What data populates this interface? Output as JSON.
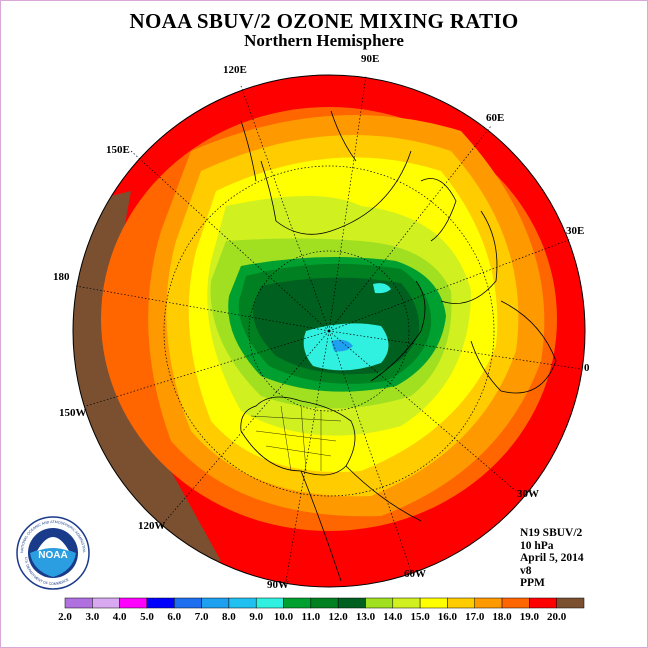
{
  "title": "NOAA SBUV/2 OZONE MIXING RATIO",
  "subtitle": "Northern Hemisphere",
  "longitude_labels": [
    "90E",
    "60E",
    "30E",
    "0",
    "30W",
    "60W",
    "90W",
    "120W",
    "150W",
    "180",
    "150E",
    "120E"
  ],
  "info": {
    "instrument": "N19 SBUV/2",
    "level": "10 hPa",
    "date": "April 5, 2014",
    "version": "v8",
    "units": "PPM"
  },
  "colorbar": {
    "ticks": [
      "2.0",
      "3.0",
      "4.0",
      "5.0",
      "6.0",
      "7.0",
      "8.0",
      "9.0",
      "10.0",
      "11.0",
      "12.0",
      "13.0",
      "14.0",
      "15.0",
      "16.0",
      "17.0",
      "18.0",
      "19.0",
      "20.0"
    ],
    "colors": [
      "#b070e0",
      "#d8a8f0",
      "#ff00ff",
      "#0000ff",
      "#1e6ff0",
      "#1ea0f0",
      "#20c0f0",
      "#30f0e0",
      "#00a030",
      "#008020",
      "#006020",
      "#a0e020",
      "#d0f020",
      "#ffff00",
      "#ffcc00",
      "#ff9900",
      "#ff6600",
      "#ff0000",
      "#7a5030"
    ]
  },
  "logo": {
    "text": "NOAA",
    "ring_text_top": "NATIONAL OCEANIC AND ATMOSPHERIC ADMINISTRATION",
    "ring_text_bottom": "U.S. DEPARTMENT OF COMMERCE"
  },
  "map_legend_colors": {
    "brown": "#7a5030",
    "red": "#ff0000",
    "orange_red": "#ff6600",
    "orange": "#ff9900",
    "amber": "#ffcc00",
    "yellow": "#ffff00",
    "yellow_green": "#d0f020",
    "light_green": "#a0e020",
    "green": "#00a030",
    "dark_green": "#006020",
    "cyan": "#30f0e0",
    "blue": "#1ea0f0"
  }
}
